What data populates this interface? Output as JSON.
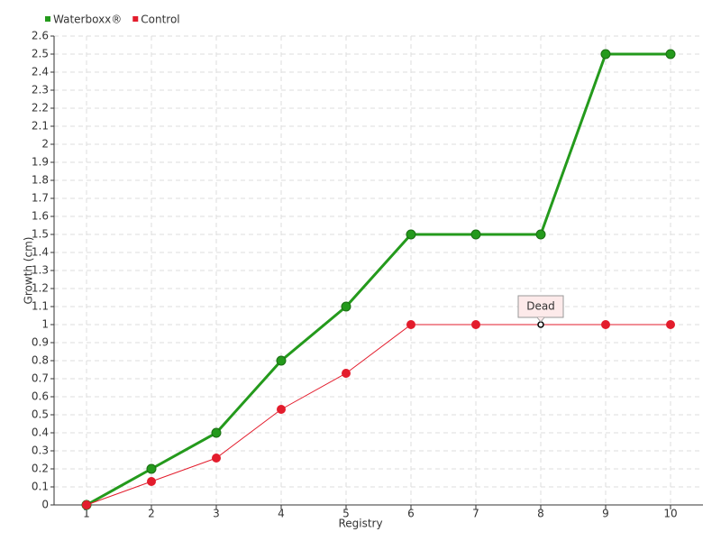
{
  "chart_data": {
    "type": "line",
    "x_label": "Registry",
    "y_label": "Growth (cm)",
    "x": [
      1,
      2,
      3,
      4,
      5,
      6,
      7,
      8,
      9,
      10
    ],
    "xlim": [
      0.5,
      10.5
    ],
    "xticks": [
      1,
      2,
      3,
      4,
      5,
      6,
      7,
      8,
      9,
      10
    ],
    "ylim": [
      0,
      2.6
    ],
    "yticks": [
      0,
      0.1,
      0.2,
      0.3,
      0.4,
      0.5,
      0.6,
      0.7,
      0.8,
      0.9,
      1,
      1.1,
      1.2,
      1.3,
      1.4,
      1.5,
      1.6,
      1.7,
      1.8,
      1.9,
      2,
      2.1,
      2.2,
      2.3,
      2.4,
      2.5,
      2.6
    ],
    "grid": true,
    "legend": "top-left",
    "series": [
      {
        "name": "Waterboxx®",
        "color": "#249a1c",
        "values": [
          0,
          0.2,
          0.4,
          0.8,
          1.1,
          1.5,
          1.5,
          1.5,
          2.5,
          2.5
        ]
      },
      {
        "name": "Control",
        "color": "#e31c2c",
        "values": [
          0,
          0.13,
          0.26,
          0.53,
          0.73,
          1,
          1,
          1,
          1,
          1
        ]
      }
    ],
    "annotations": [
      {
        "text": "Dead",
        "x": 8,
        "y": 1
      }
    ]
  }
}
